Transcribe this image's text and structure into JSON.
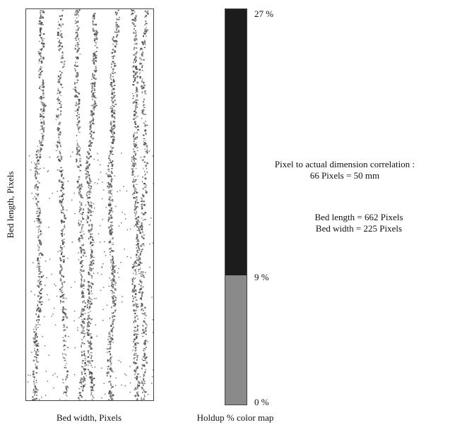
{
  "bed_image": {
    "ylabel": "Bed length, Pixels",
    "xlabel": "Bed width, Pixels"
  },
  "colormap": {
    "label": "Holdup % color map",
    "ticks": [
      "27 %",
      "9 %",
      "0 %"
    ],
    "segments": [
      {
        "from": 9,
        "to": 27,
        "color": "#1c1c1c"
      },
      {
        "from": 0,
        "to": 9,
        "color": "#8a8a8a"
      }
    ]
  },
  "notes": {
    "correlation_title": "Pixel to actual dimension correlation :",
    "correlation_value": "66 Pixels = 50 mm",
    "bed_length": "Bed length = 662 Pixels",
    "bed_width": "Bed width =  225 Pixels"
  }
}
